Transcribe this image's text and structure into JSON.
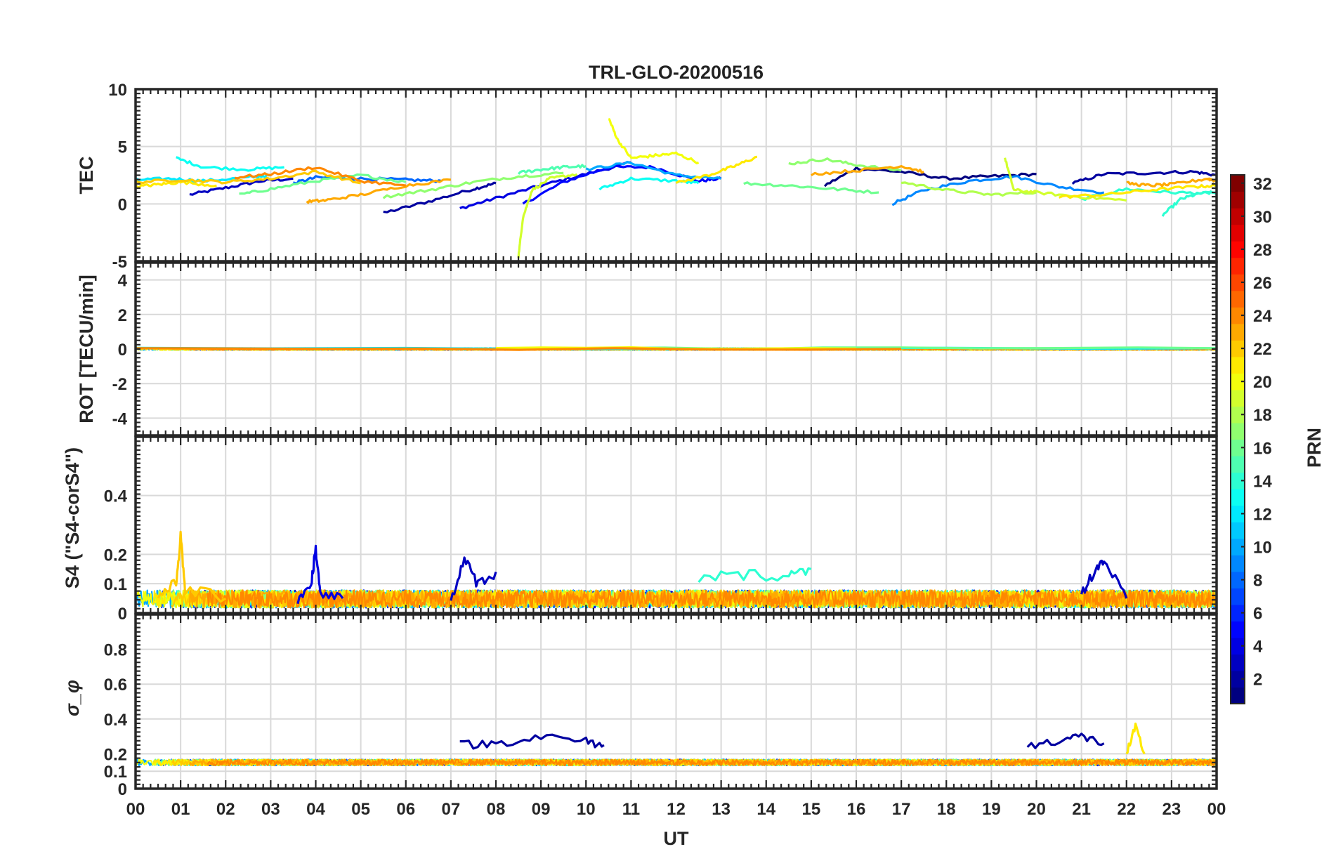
{
  "chart_data": [
    {
      "type": "line",
      "panel": "tec",
      "title": "TRL-GLO-20200516",
      "ylabel": "TEC",
      "xlabel": "",
      "ylim": [
        -5,
        10
      ],
      "yticks": [
        "-5",
        "0",
        "5",
        "10"
      ],
      "ytick_values": [
        -5,
        0,
        5,
        10
      ],
      "xlim": [
        0,
        24
      ],
      "grid": true,
      "series": [
        {
          "name": "PRN 3",
          "prn": 3,
          "x": [
            1.2,
            2.0,
            2.8,
            3.5
          ],
          "y": [
            0.8,
            1.4,
            2.0,
            2.2
          ]
        },
        {
          "name": "PRN 2",
          "prn": 2,
          "x": [
            5.5,
            6.5,
            7.5,
            8.0
          ],
          "y": [
            -0.8,
            0.2,
            1.3,
            1.8
          ]
        },
        {
          "name": "PRN 4",
          "prn": 4,
          "x": [
            7.2,
            8.0,
            9.0,
            10.0,
            11.0
          ],
          "y": [
            -0.4,
            0.5,
            1.6,
            2.6,
            3.6
          ]
        },
        {
          "name": "PRN 5",
          "prn": 5,
          "x": [
            8.6,
            9.5,
            10.5,
            11.5,
            12.5,
            13.0
          ],
          "y": [
            0.0,
            1.9,
            3.2,
            3.2,
            2.0,
            2.2
          ]
        },
        {
          "name": "PRN 1",
          "prn": 1,
          "x": [
            15.3,
            16.0,
            17.0,
            18.0,
            19.0,
            20.0
          ],
          "y": [
            1.6,
            3.1,
            2.8,
            2.2,
            2.4,
            2.6
          ]
        },
        {
          "name": "PRN 2",
          "prn": 2,
          "x": [
            20.8,
            21.5,
            22.5,
            23.5,
            24.0
          ],
          "y": [
            1.8,
            2.6,
            2.7,
            2.8,
            2.5
          ]
        },
        {
          "name": "PRN 8",
          "prn": 8,
          "x": [
            3.5,
            4.0,
            5.0,
            6.0,
            6.8
          ],
          "y": [
            1.8,
            2.3,
            2.2,
            2.1,
            2.0
          ]
        },
        {
          "name": "PRN 9",
          "prn": 9,
          "x": [
            16.8,
            17.5,
            18.5,
            19.5,
            20.5,
            21.5
          ],
          "y": [
            0.0,
            1.2,
            2.0,
            2.4,
            1.5,
            1.0
          ]
        },
        {
          "name": "PRN 10",
          "prn": 10,
          "x": [
            10.0,
            11.0,
            12.0,
            13.0
          ],
          "y": [
            3.0,
            3.6,
            2.5,
            2.2
          ]
        },
        {
          "name": "PRN 12",
          "prn": 12,
          "x": [
            0.0,
            0.8,
            1.5,
            2.5,
            3.0
          ],
          "y": [
            2.1,
            2.2,
            2.0,
            2.3,
            2.5
          ]
        },
        {
          "name": "PRN 13",
          "prn": 13,
          "x": [
            0.9,
            1.5,
            2.5,
            3.3
          ],
          "y": [
            4.0,
            3.2,
            3.0,
            3.2
          ]
        },
        {
          "name": "PRN 13",
          "prn": 13,
          "x": [
            10.3,
            11.0,
            12.0,
            12.5
          ],
          "y": [
            1.3,
            2.2,
            2.0,
            1.8
          ]
        },
        {
          "name": "PRN 14",
          "prn": 14,
          "x": [
            21.0,
            22.0,
            23.0,
            24.0
          ],
          "y": [
            0.4,
            1.3,
            1.0,
            0.9
          ]
        },
        {
          "name": "PRN 14",
          "prn": 14,
          "x": [
            22.8,
            23.2,
            23.6,
            24.0
          ],
          "y": [
            -1.0,
            0.4,
            0.9,
            1.0
          ]
        },
        {
          "name": "PRN 15",
          "prn": 15,
          "x": [
            8.5,
            9.0,
            9.5,
            10.0
          ],
          "y": [
            2.7,
            3.0,
            3.2,
            3.3
          ]
        },
        {
          "name": "PRN 16",
          "prn": 16,
          "x": [
            2.3,
            3.0,
            4.0,
            5.0,
            6.0
          ],
          "y": [
            0.8,
            1.3,
            2.0,
            2.5,
            1.9
          ]
        },
        {
          "name": "PRN 16",
          "prn": 16,
          "x": [
            13.5,
            14.5,
            15.5,
            16.5
          ],
          "y": [
            1.8,
            1.6,
            1.3,
            1.0
          ]
        },
        {
          "name": "PRN 17",
          "prn": 17,
          "x": [
            5.5,
            6.5,
            7.5,
            8.5,
            9.5
          ],
          "y": [
            0.6,
            1.2,
            1.9,
            2.4,
            2.7
          ]
        },
        {
          "name": "PRN 17",
          "prn": 17,
          "x": [
            14.5,
            15.3,
            16.0,
            17.0
          ],
          "y": [
            3.5,
            3.9,
            3.4,
            2.9
          ]
        },
        {
          "name": "PRN 18",
          "prn": 18,
          "x": [
            17.0,
            18.0,
            19.0,
            20.0
          ],
          "y": [
            1.9,
            1.2,
            0.8,
            1.0
          ]
        },
        {
          "name": "PRN 19",
          "prn": 19,
          "x": [
            8.5,
            8.6,
            8.8,
            9.2,
            9.8
          ],
          "y": [
            -4.6,
            -1.2,
            1.2,
            2.2,
            2.6
          ]
        },
        {
          "name": "PRN 19",
          "prn": 19,
          "x": [
            19.3,
            19.5,
            20.0,
            21.0,
            22.0
          ],
          "y": [
            4.0,
            1.2,
            1.0,
            0.6,
            0.3
          ]
        },
        {
          "name": "PRN 20",
          "prn": 20,
          "x": [
            10.5,
            10.7,
            11.0,
            11.5,
            12.0,
            12.5
          ],
          "y": [
            7.5,
            5.6,
            4.0,
            4.2,
            4.4,
            3.6
          ]
        },
        {
          "name": "PRN 21",
          "prn": 21,
          "x": [
            0.0,
            0.5,
            1.0,
            1.8
          ],
          "y": [
            1.5,
            1.7,
            1.9,
            1.6
          ]
        },
        {
          "name": "PRN 21",
          "prn": 21,
          "x": [
            12.0,
            12.8,
            13.3,
            13.8
          ],
          "y": [
            1.8,
            2.6,
            3.3,
            4.1
          ]
        },
        {
          "name": "PRN 21",
          "prn": 21,
          "x": [
            20.5,
            21.5,
            22.5,
            23.5,
            24.0
          ],
          "y": [
            0.6,
            0.8,
            1.2,
            1.5,
            1.6
          ]
        },
        {
          "name": "PRN 22",
          "prn": 22,
          "x": [
            0.0,
            1.0,
            2.0,
            3.0,
            4.0,
            5.0
          ],
          "y": [
            1.9,
            2.1,
            1.9,
            2.2,
            2.8,
            1.8
          ]
        },
        {
          "name": "PRN 23",
          "prn": 23,
          "x": [
            3.8,
            4.2,
            5.0,
            6.0,
            7.0
          ],
          "y": [
            0.2,
            0.3,
            0.8,
            1.6,
            2.1
          ]
        },
        {
          "name": "PRN 23",
          "prn": 23,
          "x": [
            15.0,
            16.0,
            17.0,
            17.5
          ],
          "y": [
            2.6,
            2.9,
            3.3,
            2.8
          ]
        },
        {
          "name": "PRN 23",
          "prn": 23,
          "x": [
            22.0,
            22.5,
            23.0,
            23.8,
            24.0
          ],
          "y": [
            1.8,
            1.6,
            1.7,
            2.2,
            2.0
          ]
        },
        {
          "name": "PRN 24",
          "prn": 24,
          "x": [
            2.2,
            3.0,
            4.0,
            5.0,
            6.0
          ],
          "y": [
            2.3,
            2.6,
            3.2,
            2.0,
            1.6
          ]
        }
      ]
    },
    {
      "type": "line",
      "panel": "rot",
      "title": "",
      "ylabel": "ROT [TECU/min]",
      "ylim": [
        -5,
        5
      ],
      "yticks": [
        "-4",
        "-2",
        "0",
        "2",
        "4"
      ],
      "ytick_values": [
        -4,
        -2,
        0,
        2,
        4
      ],
      "xlim": [
        0,
        24
      ],
      "grid": true,
      "series_summary": "All PRN traces lie within about ±0.15 TECU/min around 0 for the whole day",
      "series": [
        {
          "name": "PRN 12",
          "prn": 12,
          "x": [
            0,
            24
          ],
          "y": [
            0.05,
            0.05
          ]
        },
        {
          "name": "PRN 16",
          "prn": 16,
          "x": [
            10,
            24
          ],
          "y": [
            0.03,
            0.05
          ]
        },
        {
          "name": "PRN 20",
          "prn": 20,
          "x": [
            8,
            16
          ],
          "y": [
            0.08,
            0.02
          ]
        },
        {
          "name": "PRN 24",
          "prn": 24,
          "x": [
            0,
            17
          ],
          "y": [
            0.0,
            0.0
          ]
        }
      ]
    },
    {
      "type": "line",
      "panel": "s4",
      "title": "",
      "ylabel": "S4 (\"S4-corS4\")",
      "ylim": [
        0,
        0.6
      ],
      "yticks": [
        "0",
        "0.1",
        "0.2",
        "0.4"
      ],
      "ytick_values": [
        0,
        0.1,
        0.2,
        0.4
      ],
      "xlim": [
        0,
        24
      ],
      "grid": true,
      "series_summary": "Noisy S4 values mostly between 0.02 and 0.1; peaks 0.26 near 01 UT (PRN 22) and 0.22 near 04 UT (PRN 4); PRN 14 plateau ~0.13 from 12.5–15 UT; PRN 3 bursts up to 0.18 near 07–08 UT and 21–22 UT",
      "series": [
        {
          "name": "PRN 22",
          "prn": 22,
          "x": [
            0.5,
            0.9,
            1.0,
            1.1,
            2.0
          ],
          "y": [
            0.06,
            0.1,
            0.26,
            0.08,
            0.05
          ]
        },
        {
          "name": "PRN 4",
          "prn": 4,
          "x": [
            3.6,
            3.9,
            4.0,
            4.1,
            4.6
          ],
          "y": [
            0.05,
            0.1,
            0.22,
            0.06,
            0.05
          ]
        },
        {
          "name": "PRN 14",
          "prn": 14,
          "x": [
            12.5,
            13.5,
            14.5,
            15.0
          ],
          "y": [
            0.12,
            0.13,
            0.13,
            0.15
          ]
        },
        {
          "name": "PRN 3",
          "prn": 3,
          "x": [
            7.0,
            7.3,
            7.6,
            8.0
          ],
          "y": [
            0.05,
            0.18,
            0.1,
            0.14
          ]
        },
        {
          "name": "PRN 3",
          "prn": 3,
          "x": [
            21.0,
            21.3,
            21.5,
            22.0
          ],
          "y": [
            0.06,
            0.15,
            0.18,
            0.05
          ]
        }
      ]
    },
    {
      "type": "line",
      "panel": "sigma_phi",
      "title": "",
      "ylabel": "σ_φ",
      "xlabel": "UT",
      "ylim": [
        0,
        1.0
      ],
      "yticks": [
        "0",
        "0.1",
        "0.2",
        "0.4",
        "0.6",
        "0.8"
      ],
      "ytick_values": [
        0,
        0.1,
        0.2,
        0.4,
        0.6,
        0.8
      ],
      "xlim": [
        0,
        24
      ],
      "xticks": [
        "00",
        "01",
        "02",
        "03",
        "04",
        "05",
        "06",
        "07",
        "08",
        "09",
        "10",
        "11",
        "12",
        "13",
        "14",
        "15",
        "16",
        "17",
        "18",
        "19",
        "20",
        "21",
        "22",
        "23",
        "00"
      ],
      "grid": true,
      "series_summary": "Baseline ~0.14–0.17; PRN 2 elevated to ~0.25–0.36 during 07–10.4 UT and 19.8–21.5 UT; spike ~0.35 near 22.2 UT",
      "series": [
        {
          "name": "PRN 2",
          "prn": 2,
          "x": [
            7.2,
            8.0,
            9.0,
            10.0,
            10.4
          ],
          "y": [
            0.25,
            0.26,
            0.3,
            0.27,
            0.25
          ]
        },
        {
          "name": "PRN 2",
          "prn": 2,
          "x": [
            19.8,
            20.5,
            21.0,
            21.5
          ],
          "y": [
            0.24,
            0.28,
            0.3,
            0.26
          ]
        },
        {
          "name": "PRN 21",
          "prn": 21,
          "x": [
            22.0,
            22.2,
            22.4
          ],
          "y": [
            0.2,
            0.35,
            0.2
          ]
        }
      ]
    }
  ],
  "colorbar": {
    "label": "PRN",
    "range": [
      1,
      32
    ],
    "ticks": [
      "2",
      "4",
      "6",
      "8",
      "10",
      "12",
      "14",
      "16",
      "18",
      "20",
      "22",
      "24",
      "26",
      "28",
      "30",
      "32"
    ],
    "tick_values": [
      2,
      4,
      6,
      8,
      10,
      12,
      14,
      16,
      18,
      20,
      22,
      24,
      26,
      28,
      30,
      32
    ],
    "colormap": "jet"
  }
}
